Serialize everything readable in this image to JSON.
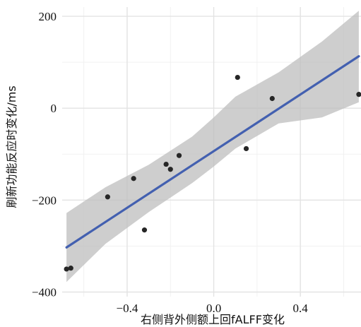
{
  "chart_data": {
    "type": "scatter",
    "title": "",
    "xlabel": "右侧背外侧额上回fALFF变化",
    "ylabel": "刷新功能反应时变化/ms",
    "xlim": [
      -0.7,
      0.68
    ],
    "ylim": [
      -410,
      220
    ],
    "x_ticks": [
      -0.4,
      0.0,
      0.4
    ],
    "x_tick_labels": [
      "−0.4",
      "0.0",
      "0.4"
    ],
    "y_ticks": [
      -400,
      -200,
      0,
      200
    ],
    "y_tick_labels": [
      "−400",
      "−200",
      "0",
      "200"
    ],
    "grid": true,
    "points": [
      {
        "x": -0.68,
        "y": -350
      },
      {
        "x": -0.66,
        "y": -348
      },
      {
        "x": -0.49,
        "y": -193
      },
      {
        "x": -0.37,
        "y": -153
      },
      {
        "x": -0.32,
        "y": -265
      },
      {
        "x": -0.22,
        "y": -122
      },
      {
        "x": -0.2,
        "y": -133
      },
      {
        "x": -0.16,
        "y": -103
      },
      {
        "x": 0.11,
        "y": 67
      },
      {
        "x": 0.15,
        "y": -88
      },
      {
        "x": 0.27,
        "y": 21
      },
      {
        "x": 0.67,
        "y": 30
      }
    ],
    "fit_line": {
      "x": [
        -0.68,
        0.67
      ],
      "y": [
        -303,
        113
      ]
    },
    "confidence_band": {
      "x": [
        -0.68,
        -0.5,
        -0.3,
        -0.1,
        0.0,
        0.1,
        0.3,
        0.5,
        0.67
      ],
      "upper": [
        -228,
        -172,
        -123,
        -62,
        -20,
        25,
        78,
        145,
        212
      ],
      "lower": [
        -378,
        -295,
        -226,
        -163,
        -127,
        -88,
        -33,
        -20,
        13
      ]
    },
    "colors": {
      "points": "#262626",
      "line": "#4360b0",
      "band": "#bdbdbd",
      "grid_major": "#e3e3e3",
      "grid_minor": "#f1f1f1"
    }
  }
}
